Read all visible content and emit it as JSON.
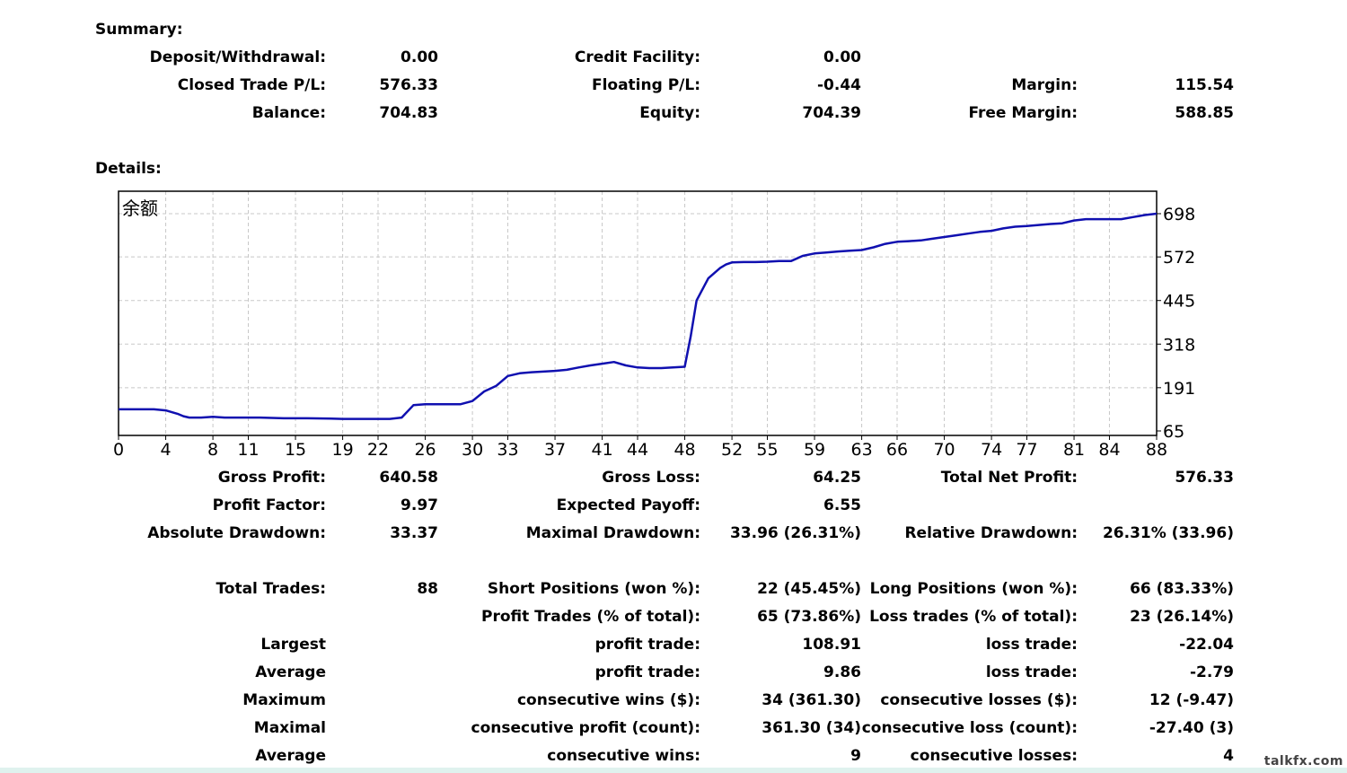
{
  "summary": {
    "title": "Summary:",
    "deposit_label": "Deposit/Withdrawal:",
    "deposit_value": "0.00",
    "credit_label": "Credit Facility:",
    "credit_value": "0.00",
    "closed_label": "Closed Trade P/L:",
    "closed_value": "576.33",
    "floating_label": "Floating P/L:",
    "floating_value": "-0.44",
    "margin_label": "Margin:",
    "margin_value": "115.54",
    "balance_label": "Balance:",
    "balance_value": "704.83",
    "equity_label": "Equity:",
    "equity_value": "704.39",
    "free_margin_label": "Free Margin:",
    "free_margin_value": "588.85"
  },
  "details": {
    "title": "Details:",
    "gross_profit_label": "Gross Profit:",
    "gross_profit_value": "640.58",
    "gross_loss_label": "Gross Loss:",
    "gross_loss_value": "64.25",
    "total_net_label": "Total Net Profit:",
    "total_net_value": "576.33",
    "profit_factor_label": "Profit Factor:",
    "profit_factor_value": "9.97",
    "expected_payoff_label": "Expected Payoff:",
    "expected_payoff_value": "6.55",
    "abs_dd_label": "Absolute Drawdown:",
    "abs_dd_value": "33.37",
    "max_dd_label": "Maximal Drawdown:",
    "max_dd_value": "33.96 (26.31%)",
    "rel_dd_label": "Relative Drawdown:",
    "rel_dd_value": "26.31% (33.96)",
    "total_trades_label": "Total Trades:",
    "total_trades_value": "88",
    "short_label": "Short Positions (won %):",
    "short_value": "22 (45.45%)",
    "long_label": "Long Positions (won %):",
    "long_value": "66 (83.33%)",
    "profit_trades_label": "Profit Trades (% of total):",
    "profit_trades_value": "65 (73.86%)",
    "loss_trades_label": "Loss trades (% of total):",
    "loss_trades_value": "23 (26.14%)",
    "largest_label": "Largest",
    "largest_profit_label": "profit trade:",
    "largest_profit_value": "108.91",
    "largest_loss_label": "loss trade:",
    "largest_loss_value": "-22.04",
    "average_label": "Average",
    "average_profit_label": "profit trade:",
    "average_profit_value": "9.86",
    "average_loss_label": "loss trade:",
    "average_loss_value": "-2.79",
    "maximum_label": "Maximum",
    "max_wins_label": "consecutive wins ($):",
    "max_wins_value": "34 (361.30)",
    "max_losses_label": "consecutive losses ($):",
    "max_losses_value": "12 (-9.47)",
    "maximal_label": "Maximal",
    "maximal_profit_label": "consecutive profit (count):",
    "maximal_profit_value": "361.30 (34)",
    "maximal_loss_label": "consecutive loss (count):",
    "maximal_loss_value": "-27.40 (3)",
    "average2_label": "Average",
    "avg_wins_label": "consecutive wins:",
    "avg_wins_value": "9",
    "avg_losses_label": "consecutive losses:",
    "avg_losses_value": "4"
  },
  "watermark": "talkfx.com",
  "colors": {
    "line": "#1010b0",
    "grid": "#c8c8c8",
    "frame": "#000000"
  },
  "chart_data": {
    "type": "line",
    "title": "余额",
    "x_ticks": [
      "0",
      "4",
      "8",
      "11",
      "15",
      "19",
      "22",
      "26",
      "30",
      "33",
      "37",
      "41",
      "44",
      "48",
      "52",
      "55",
      "59",
      "63",
      "66",
      "70",
      "74",
      "77",
      "81",
      "84",
      "88"
    ],
    "y_ticks": [
      "698",
      "572",
      "445",
      "318",
      "191",
      "65"
    ],
    "xlim": [
      0,
      88
    ],
    "ylim": [
      65,
      698
    ],
    "grid": true,
    "series": [
      {
        "x": [
          0,
          3,
          4,
          5,
          5.5,
          6,
          7,
          8,
          9,
          10,
          12,
          14,
          15,
          16,
          18,
          19,
          20,
          21,
          22,
          23,
          24,
          25,
          26,
          27,
          28,
          29,
          30,
          31,
          32,
          33,
          34,
          35,
          36,
          37,
          38,
          39,
          40,
          41,
          42,
          43,
          44,
          45,
          46,
          47,
          48,
          48.5,
          49,
          50,
          51,
          51.5,
          52,
          53,
          54,
          55,
          56,
          57,
          58,
          59,
          60,
          61,
          62,
          63,
          64,
          65,
          66,
          67,
          68,
          69,
          70,
          71,
          72,
          73,
          74,
          75,
          76,
          77,
          78,
          79,
          80,
          81,
          82,
          83,
          84,
          85,
          86,
          87,
          88
        ],
        "y": [
          128,
          128,
          125,
          115,
          108,
          104,
          104,
          106,
          104,
          104,
          104,
          102,
          102,
          102,
          101,
          100,
          100,
          100,
          100,
          100,
          104,
          140,
          143,
          143,
          143,
          143,
          152,
          180,
          196,
          225,
          233,
          236,
          238,
          240,
          243,
          250,
          256,
          261,
          266,
          256,
          250,
          248,
          248,
          250,
          252,
          340,
          445,
          510,
          540,
          550,
          556,
          557,
          557,
          558,
          560,
          560,
          575,
          582,
          585,
          588,
          590,
          592,
          600,
          610,
          616,
          618,
          620,
          625,
          630,
          635,
          640,
          645,
          648,
          655,
          660,
          662,
          665,
          668,
          670,
          678,
          682,
          682,
          682,
          682,
          688,
          694,
          698
        ]
      }
    ]
  }
}
